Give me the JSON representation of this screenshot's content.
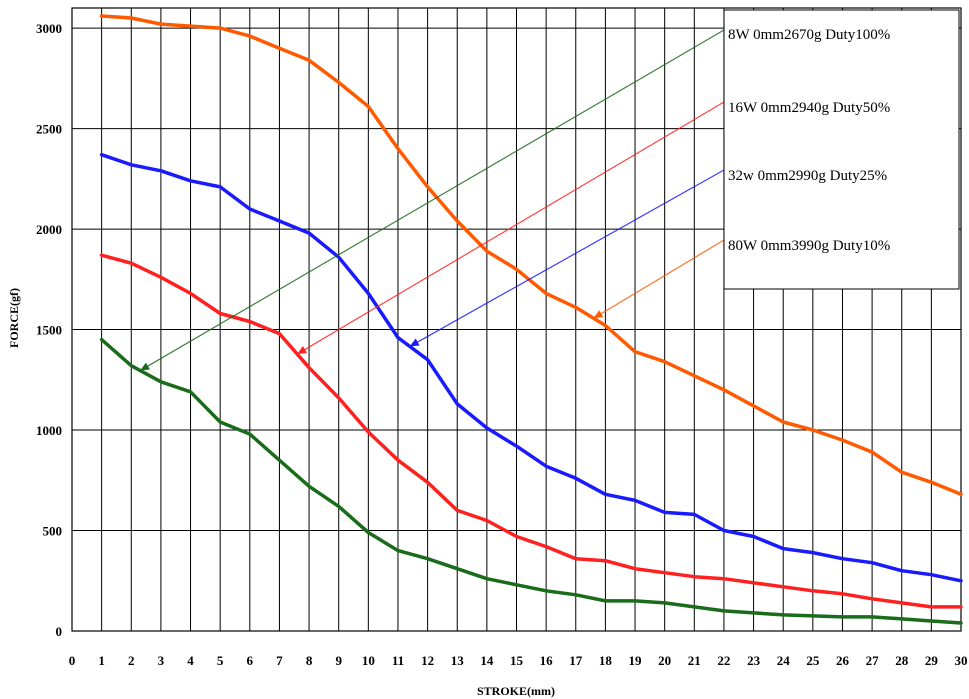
{
  "chart_data": {
    "type": "line",
    "title": "",
    "xlabel": "STROKE(mm)",
    "ylabel": "FORCE(gf)",
    "xlim": [
      0,
      30
    ],
    "ylim": [
      0,
      3100
    ],
    "x_ticks": [
      0,
      1,
      2,
      3,
      4,
      5,
      6,
      7,
      8,
      9,
      10,
      11,
      12,
      13,
      14,
      15,
      16,
      17,
      18,
      19,
      20,
      21,
      22,
      23,
      24,
      25,
      26,
      27,
      28,
      29,
      30
    ],
    "y_ticks": [
      0,
      500,
      1000,
      1500,
      2000,
      2500,
      3000
    ],
    "grid": true,
    "legend_position": "top-right",
    "x": [
      1,
      2,
      3,
      4,
      5,
      6,
      7,
      8,
      9,
      10,
      11,
      12,
      13,
      14,
      15,
      16,
      17,
      18,
      19,
      20,
      21,
      22,
      23,
      24,
      25,
      26,
      27,
      28,
      29,
      30
    ],
    "series": [
      {
        "name": "8W 0mm2670g Duty100%",
        "color": "#1a6b1a",
        "values": [
          1450,
          1320,
          1240,
          1190,
          1040,
          980,
          850,
          720,
          620,
          490,
          400,
          360,
          310,
          260,
          230,
          200,
          180,
          150,
          150,
          140,
          120,
          100,
          90,
          80,
          75,
          70,
          70,
          60,
          50,
          40
        ],
        "annotation_x": 2.3
      },
      {
        "name": "16W 0mm2940g Duty50%",
        "color": "#ff2020",
        "values": [
          1870,
          1830,
          1760,
          1680,
          1580,
          1540,
          1480,
          1310,
          1160,
          990,
          850,
          740,
          600,
          550,
          470,
          420,
          360,
          350,
          310,
          290,
          270,
          260,
          240,
          220,
          200,
          185,
          160,
          140,
          120,
          120
        ],
        "annotation_x": 7.6
      },
      {
        "name": "32w 0mm2990g Duty25%",
        "color": "#1a1aff",
        "values": [
          2370,
          2320,
          2290,
          2240,
          2210,
          2100,
          2040,
          1980,
          1860,
          1680,
          1460,
          1350,
          1130,
          1010,
          920,
          820,
          760,
          680,
          650,
          590,
          580,
          500,
          470,
          410,
          390,
          360,
          340,
          300,
          280,
          250
        ],
        "annotation_x": 11.4
      },
      {
        "name": "80W 0mm3990g Duty10%",
        "color": "#ff5a00",
        "values": [
          3060,
          3050,
          3020,
          3010,
          3000,
          2960,
          2900,
          2840,
          2730,
          2610,
          2400,
          2210,
          2040,
          1890,
          1800,
          1680,
          1610,
          1520,
          1390,
          1340,
          1270,
          1200,
          1120,
          1040,
          1000,
          950,
          890,
          790,
          740,
          680
        ],
        "annotation_x": 17.6
      }
    ]
  }
}
